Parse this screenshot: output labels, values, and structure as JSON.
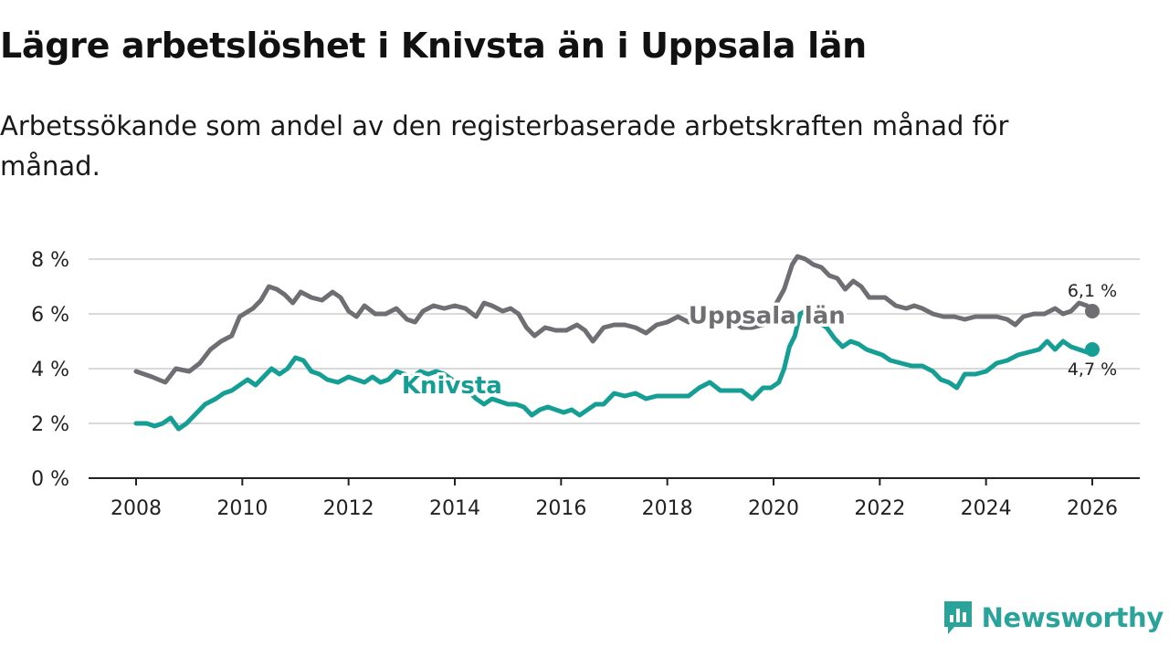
{
  "title": "Lägre arbetslöshet i Knivsta än i Uppsala län",
  "subtitle": "Arbetssökande som andel av den registerbaserade arbetskraften månad för månad.",
  "brand": {
    "name": "Newsworthy",
    "icon": "chart-bubble-icon",
    "color": "#2aa39a"
  },
  "chart_data": {
    "type": "line",
    "xlim": [
      2008,
      2026
    ],
    "ylim": [
      0,
      8
    ],
    "grid": true,
    "x_ticks": [
      2008,
      2010,
      2012,
      2014,
      2016,
      2018,
      2020,
      2022,
      2024,
      2026
    ],
    "x_tick_labels": [
      "2008",
      "2010",
      "2012",
      "2014",
      "2016",
      "2018",
      "2020",
      "2022",
      "2024",
      "2026"
    ],
    "y_ticks": [
      0,
      2,
      4,
      6,
      8
    ],
    "y_tick_labels": [
      "0 %",
      "2 %",
      "4 %",
      "6 %",
      "8 %"
    ],
    "series": [
      {
        "name": "Uppsala län",
        "label": "Uppsala län",
        "color": "#6e6e73",
        "end_label": "6,1 %",
        "points": [
          [
            2008.0,
            3.9
          ],
          [
            2008.3,
            3.7
          ],
          [
            2008.55,
            3.5
          ],
          [
            2008.75,
            4.0
          ],
          [
            2009.0,
            3.9
          ],
          [
            2009.2,
            4.2
          ],
          [
            2009.4,
            4.7
          ],
          [
            2009.6,
            5.0
          ],
          [
            2009.8,
            5.2
          ],
          [
            2009.95,
            5.9
          ],
          [
            2010.2,
            6.2
          ],
          [
            2010.35,
            6.5
          ],
          [
            2010.5,
            7.0
          ],
          [
            2010.65,
            6.9
          ],
          [
            2010.8,
            6.7
          ],
          [
            2010.95,
            6.4
          ],
          [
            2011.1,
            6.8
          ],
          [
            2011.3,
            6.6
          ],
          [
            2011.5,
            6.5
          ],
          [
            2011.7,
            6.8
          ],
          [
            2011.85,
            6.6
          ],
          [
            2012.0,
            6.1
          ],
          [
            2012.15,
            5.9
          ],
          [
            2012.3,
            6.3
          ],
          [
            2012.5,
            6.0
          ],
          [
            2012.7,
            6.0
          ],
          [
            2012.9,
            6.2
          ],
          [
            2013.1,
            5.8
          ],
          [
            2013.25,
            5.7
          ],
          [
            2013.4,
            6.1
          ],
          [
            2013.6,
            6.3
          ],
          [
            2013.8,
            6.2
          ],
          [
            2014.0,
            6.3
          ],
          [
            2014.2,
            6.2
          ],
          [
            2014.4,
            5.9
          ],
          [
            2014.55,
            6.4
          ],
          [
            2014.7,
            6.3
          ],
          [
            2014.9,
            6.1
          ],
          [
            2015.05,
            6.2
          ],
          [
            2015.2,
            6.0
          ],
          [
            2015.35,
            5.5
          ],
          [
            2015.5,
            5.2
          ],
          [
            2015.7,
            5.5
          ],
          [
            2015.9,
            5.4
          ],
          [
            2016.1,
            5.4
          ],
          [
            2016.3,
            5.6
          ],
          [
            2016.45,
            5.4
          ],
          [
            2016.6,
            5.0
          ],
          [
            2016.8,
            5.5
          ],
          [
            2017.0,
            5.6
          ],
          [
            2017.2,
            5.6
          ],
          [
            2017.4,
            5.5
          ],
          [
            2017.6,
            5.3
          ],
          [
            2017.8,
            5.6
          ],
          [
            2018.0,
            5.7
          ],
          [
            2018.2,
            5.9
          ],
          [
            2018.4,
            5.7
          ],
          [
            2018.6,
            5.9
          ],
          [
            2018.8,
            5.8
          ],
          [
            2019.0,
            6.0
          ],
          [
            2019.2,
            5.8
          ],
          [
            2019.4,
            5.5
          ],
          [
            2019.6,
            5.5
          ],
          [
            2019.8,
            5.6
          ],
          [
            2020.0,
            6.2
          ],
          [
            2020.2,
            6.9
          ],
          [
            2020.35,
            7.8
          ],
          [
            2020.45,
            8.1
          ],
          [
            2020.6,
            8.0
          ],
          [
            2020.75,
            7.8
          ],
          [
            2020.9,
            7.7
          ],
          [
            2021.05,
            7.4
          ],
          [
            2021.2,
            7.3
          ],
          [
            2021.35,
            6.9
          ],
          [
            2021.5,
            7.2
          ],
          [
            2021.65,
            7.0
          ],
          [
            2021.8,
            6.6
          ],
          [
            2021.95,
            6.6
          ],
          [
            2022.1,
            6.6
          ],
          [
            2022.3,
            6.3
          ],
          [
            2022.5,
            6.2
          ],
          [
            2022.65,
            6.3
          ],
          [
            2022.8,
            6.2
          ],
          [
            2023.0,
            6.0
          ],
          [
            2023.2,
            5.9
          ],
          [
            2023.4,
            5.9
          ],
          [
            2023.6,
            5.8
          ],
          [
            2023.8,
            5.9
          ],
          [
            2024.0,
            5.9
          ],
          [
            2024.2,
            5.9
          ],
          [
            2024.4,
            5.8
          ],
          [
            2024.55,
            5.6
          ],
          [
            2024.7,
            5.9
          ],
          [
            2024.9,
            6.0
          ],
          [
            2025.1,
            6.0
          ],
          [
            2025.3,
            6.2
          ],
          [
            2025.45,
            6.0
          ],
          [
            2025.6,
            6.1
          ],
          [
            2025.75,
            6.4
          ],
          [
            2025.9,
            6.3
          ],
          [
            2026.0,
            6.1
          ]
        ]
      },
      {
        "name": "Knivsta",
        "label": "Knivsta",
        "color": "#159e94",
        "end_label": "4,7 %",
        "points": [
          [
            2008.0,
            2.0
          ],
          [
            2008.2,
            2.0
          ],
          [
            2008.35,
            1.9
          ],
          [
            2008.5,
            2.0
          ],
          [
            2008.65,
            2.2
          ],
          [
            2008.8,
            1.8
          ],
          [
            2008.95,
            2.0
          ],
          [
            2009.1,
            2.3
          ],
          [
            2009.3,
            2.7
          ],
          [
            2009.5,
            2.9
          ],
          [
            2009.65,
            3.1
          ],
          [
            2009.8,
            3.2
          ],
          [
            2009.95,
            3.4
          ],
          [
            2010.1,
            3.6
          ],
          [
            2010.25,
            3.4
          ],
          [
            2010.4,
            3.7
          ],
          [
            2010.55,
            4.0
          ],
          [
            2010.7,
            3.8
          ],
          [
            2010.85,
            4.0
          ],
          [
            2011.0,
            4.4
          ],
          [
            2011.15,
            4.3
          ],
          [
            2011.3,
            3.9
          ],
          [
            2011.45,
            3.8
          ],
          [
            2011.6,
            3.6
          ],
          [
            2011.8,
            3.5
          ],
          [
            2012.0,
            3.7
          ],
          [
            2012.15,
            3.6
          ],
          [
            2012.3,
            3.5
          ],
          [
            2012.45,
            3.7
          ],
          [
            2012.6,
            3.5
          ],
          [
            2012.75,
            3.6
          ],
          [
            2012.9,
            3.9
          ],
          [
            2013.05,
            3.8
          ],
          [
            2013.2,
            3.7
          ],
          [
            2013.35,
            3.9
          ],
          [
            2013.5,
            3.8
          ],
          [
            2013.65,
            3.9
          ],
          [
            2013.8,
            3.8
          ],
          [
            2013.95,
            3.6
          ],
          [
            2014.1,
            3.4
          ],
          [
            2014.25,
            3.2
          ],
          [
            2014.4,
            2.9
          ],
          [
            2014.55,
            2.7
          ],
          [
            2014.7,
            2.9
          ],
          [
            2014.85,
            2.8
          ],
          [
            2015.0,
            2.7
          ],
          [
            2015.15,
            2.7
          ],
          [
            2015.3,
            2.6
          ],
          [
            2015.45,
            2.3
          ],
          [
            2015.6,
            2.5
          ],
          [
            2015.75,
            2.6
          ],
          [
            2015.9,
            2.5
          ],
          [
            2016.05,
            2.4
          ],
          [
            2016.2,
            2.5
          ],
          [
            2016.35,
            2.3
          ],
          [
            2016.5,
            2.5
          ],
          [
            2016.65,
            2.7
          ],
          [
            2016.8,
            2.7
          ],
          [
            2017.0,
            3.1
          ],
          [
            2017.2,
            3.0
          ],
          [
            2017.4,
            3.1
          ],
          [
            2017.6,
            2.9
          ],
          [
            2017.8,
            3.0
          ],
          [
            2018.0,
            3.0
          ],
          [
            2018.2,
            3.0
          ],
          [
            2018.4,
            3.0
          ],
          [
            2018.6,
            3.3
          ],
          [
            2018.8,
            3.5
          ],
          [
            2019.0,
            3.2
          ],
          [
            2019.2,
            3.2
          ],
          [
            2019.4,
            3.2
          ],
          [
            2019.6,
            2.9
          ],
          [
            2019.8,
            3.3
          ],
          [
            2019.95,
            3.3
          ],
          [
            2020.1,
            3.5
          ],
          [
            2020.2,
            4.0
          ],
          [
            2020.3,
            4.8
          ],
          [
            2020.4,
            5.2
          ],
          [
            2020.5,
            6.0
          ],
          [
            2020.6,
            6.1
          ],
          [
            2020.7,
            5.9
          ],
          [
            2020.85,
            5.7
          ],
          [
            2021.0,
            5.5
          ],
          [
            2021.15,
            5.1
          ],
          [
            2021.3,
            4.8
          ],
          [
            2021.45,
            5.0
          ],
          [
            2021.6,
            4.9
          ],
          [
            2021.75,
            4.7
          ],
          [
            2021.9,
            4.6
          ],
          [
            2022.05,
            4.5
          ],
          [
            2022.2,
            4.3
          ],
          [
            2022.4,
            4.2
          ],
          [
            2022.6,
            4.1
          ],
          [
            2022.8,
            4.1
          ],
          [
            2023.0,
            3.9
          ],
          [
            2023.15,
            3.6
          ],
          [
            2023.3,
            3.5
          ],
          [
            2023.45,
            3.3
          ],
          [
            2023.6,
            3.8
          ],
          [
            2023.8,
            3.8
          ],
          [
            2024.0,
            3.9
          ],
          [
            2024.2,
            4.2
          ],
          [
            2024.4,
            4.3
          ],
          [
            2024.6,
            4.5
          ],
          [
            2024.8,
            4.6
          ],
          [
            2025.0,
            4.7
          ],
          [
            2025.15,
            5.0
          ],
          [
            2025.3,
            4.7
          ],
          [
            2025.45,
            5.0
          ],
          [
            2025.6,
            4.8
          ],
          [
            2025.75,
            4.7
          ],
          [
            2025.9,
            4.6
          ],
          [
            2026.0,
            4.7
          ]
        ]
      }
    ]
  }
}
